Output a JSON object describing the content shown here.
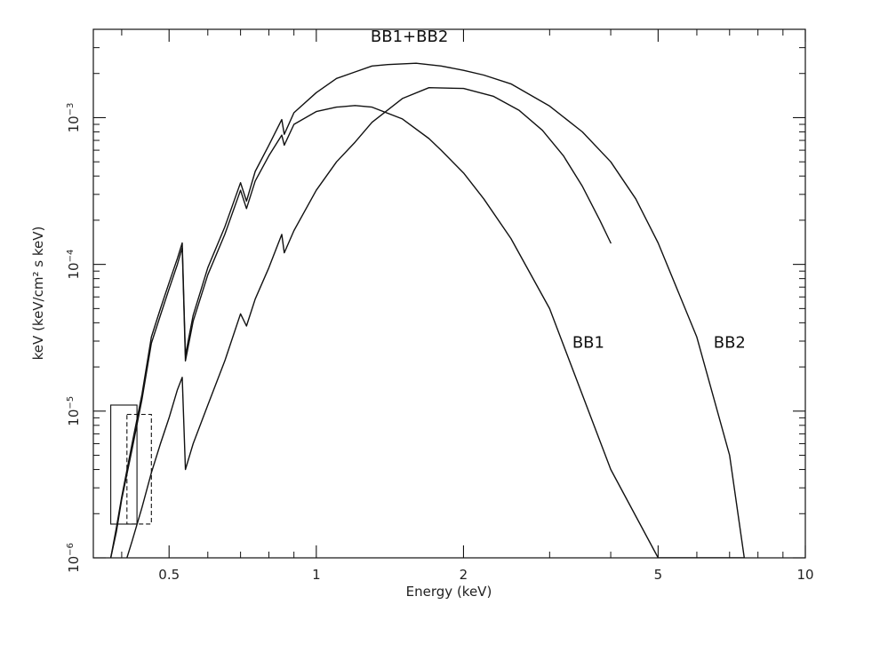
{
  "chart_data": {
    "type": "line",
    "title": "",
    "xlabel": "Energy (keV)",
    "ylabel": "keV (keV/cm² s keV)",
    "x_scale": "log",
    "y_scale": "log",
    "xlim": [
      0.35,
      10
    ],
    "ylim": [
      1e-06,
      0.004
    ],
    "grid": false,
    "legend": "none",
    "x_ticks": [
      {
        "value": 0.5,
        "label": "0.5"
      },
      {
        "value": 1,
        "label": "1"
      },
      {
        "value": 2,
        "label": "2"
      },
      {
        "value": 5,
        "label": "5"
      },
      {
        "value": 10,
        "label": "10"
      }
    ],
    "y_ticks": [
      {
        "value": 1e-06,
        "base": "10",
        "exp": "−6"
      },
      {
        "value": 1e-05,
        "base": "10",
        "exp": "−5"
      },
      {
        "value": 0.0001,
        "base": "10",
        "exp": "−4"
      },
      {
        "value": 0.001,
        "base": "10",
        "exp": "−3"
      }
    ],
    "series": [
      {
        "label": "BB1+BB2",
        "label_at": [
          1.55,
          0.0033
        ],
        "x": [
          0.38,
          0.39,
          0.4,
          0.42,
          0.44,
          0.46,
          0.48,
          0.5,
          0.52,
          0.532,
          0.54,
          0.56,
          0.6,
          0.65,
          0.7,
          0.72,
          0.75,
          0.8,
          0.85,
          0.86,
          0.9,
          1.0,
          1.1,
          1.2,
          1.3,
          1.4,
          1.6,
          1.8,
          2.0,
          2.2,
          2.5,
          3.0,
          3.5,
          4.0,
          4.5,
          5.0,
          6.0,
          7.0,
          7.5
        ],
        "y": [
          1e-06,
          1.6e-06,
          2.6e-06,
          6e-06,
          1.3e-05,
          3.2e-05,
          5e-05,
          7.5e-05,
          0.00011,
          0.00014,
          2.4e-05,
          4.5e-05,
          9.5e-05,
          0.00018,
          0.00036,
          0.00027,
          0.00043,
          0.00065,
          0.00097,
          0.00077,
          0.00108,
          0.00148,
          0.00185,
          0.00205,
          0.00225,
          0.0023,
          0.00235,
          0.00225,
          0.0021,
          0.00195,
          0.0017,
          0.0012,
          0.0008,
          0.0005,
          0.00028,
          0.00014,
          3.2e-05,
          5e-06,
          1e-06
        ]
      },
      {
        "label": "BB1",
        "label_at": [
          3.6,
          2.7e-05
        ],
        "x": [
          0.41,
          0.42,
          0.44,
          0.46,
          0.48,
          0.5,
          0.52,
          0.532,
          0.54,
          0.56,
          0.6,
          0.65,
          0.7,
          0.72,
          0.75,
          0.8,
          0.85,
          0.86,
          0.9,
          1.0,
          1.1,
          1.2,
          1.3,
          1.5,
          1.7,
          2.0,
          2.3,
          2.6,
          2.9,
          3.2,
          3.5,
          3.8,
          4.0
        ],
        "y": [
          1e-06,
          1.3e-06,
          2.2e-06,
          3.8e-06,
          6e-06,
          9e-06,
          1.4e-05,
          1.7e-05,
          4e-06,
          6e-06,
          1.1e-05,
          2.2e-05,
          4.6e-05,
          3.8e-05,
          5.8e-05,
          9.5e-05,
          0.00016,
          0.00012,
          0.00017,
          0.00032,
          0.0005,
          0.00068,
          0.00093,
          0.00135,
          0.0016,
          0.00158,
          0.0014,
          0.00112,
          0.00082,
          0.00055,
          0.00034,
          0.0002,
          0.00014
        ]
      },
      {
        "label": "BB2",
        "label_at": [
          7.0,
          2.7e-05
        ],
        "x": [
          0.38,
          0.39,
          0.4,
          0.42,
          0.44,
          0.46,
          0.48,
          0.5,
          0.52,
          0.532,
          0.54,
          0.56,
          0.6,
          0.65,
          0.7,
          0.72,
          0.75,
          0.8,
          0.85,
          0.86,
          0.9,
          1.0,
          1.1,
          1.2,
          1.3,
          1.5,
          1.7,
          1.8,
          2.0,
          2.2,
          2.5,
          3.0,
          4.0,
          5.0,
          6.0,
          7.0,
          7.5
        ],
        "y": [
          1e-06,
          1.5e-06,
          2.5e-06,
          5.5e-06,
          1.2e-05,
          2.9e-05,
          4.5e-05,
          6.8e-05,
          0.0001,
          0.00013,
          2.2e-05,
          4.1e-05,
          8.5e-05,
          0.00016,
          0.00032,
          0.00024,
          0.00037,
          0.00055,
          0.00076,
          0.00065,
          0.0009,
          0.0011,
          0.00118,
          0.00121,
          0.00118,
          0.00098,
          0.00072,
          0.0006,
          0.00042,
          0.00028,
          0.00015,
          5e-05,
          4e-06,
          1e-06,
          1e-06,
          1e-06,
          1e-06
        ]
      }
    ],
    "boxes": [
      {
        "x0": 0.38,
        "x1": 0.43,
        "y0": 1.7e-06,
        "y1": 1.1e-05,
        "style": "solid"
      },
      {
        "x0": 0.41,
        "x1": 0.46,
        "y0": 1.7e-06,
        "y1": 9.5e-06,
        "style": "dashed"
      }
    ]
  },
  "colors": {
    "axis": "#111111",
    "line": "#111111",
    "background": "#ffffff"
  }
}
